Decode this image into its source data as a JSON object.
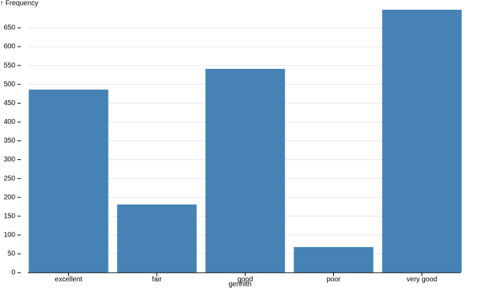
{
  "chart_data": {
    "type": "bar",
    "y_label": "↑ Frequency",
    "x_label": "genhlth",
    "categories": [
      "excellent",
      "fair",
      "good",
      "poor",
      "very good"
    ],
    "values": [
      486,
      181,
      541,
      68,
      698
    ],
    "color": "#4682b4",
    "ylim": [
      0,
      698
    ],
    "yticks": [
      0,
      50,
      100,
      150,
      200,
      250,
      300,
      350,
      400,
      450,
      500,
      550,
      600,
      650
    ],
    "grid": true
  }
}
